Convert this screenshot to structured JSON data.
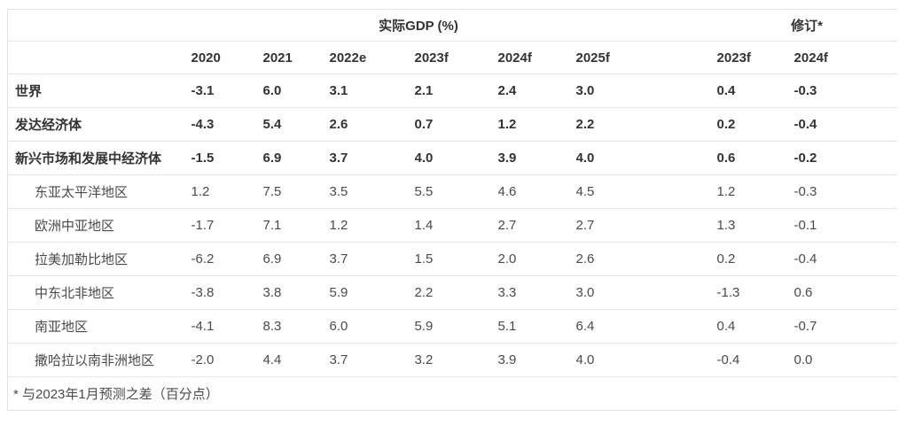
{
  "colors": {
    "background": "#ffffff",
    "border": "#e3e3e3",
    "text_strong": "#333333",
    "text_normal": "#4a4a4a"
  },
  "chart_data": {
    "type": "table",
    "title": "实际GDP (%)",
    "group_headers": {
      "gdp": "实际GDP (%)",
      "revision": "修订*"
    },
    "gdp_columns": [
      "2020",
      "2021",
      "2022e",
      "2023f",
      "2024f",
      "2025f"
    ],
    "revision_columns": [
      "2023f",
      "2024f"
    ],
    "rows": [
      {
        "label": "世界",
        "emphasis": true,
        "indent": false,
        "gdp": [
          "-3.1",
          "6.0",
          "3.1",
          "2.1",
          "2.4",
          "3.0"
        ],
        "revision": [
          "0.4",
          "-0.3"
        ]
      },
      {
        "label": "发达经济体",
        "emphasis": true,
        "indent": false,
        "gdp": [
          "-4.3",
          "5.4",
          "2.6",
          "0.7",
          "1.2",
          "2.2"
        ],
        "revision": [
          "0.2",
          "-0.4"
        ]
      },
      {
        "label": "新兴市场和发展中经济体",
        "emphasis": true,
        "indent": false,
        "gdp": [
          "-1.5",
          "6.9",
          "3.7",
          "4.0",
          "3.9",
          "4.0"
        ],
        "revision": [
          "0.6",
          "-0.2"
        ]
      },
      {
        "label": "东亚太平洋地区",
        "emphasis": false,
        "indent": true,
        "gdp": [
          "1.2",
          "7.5",
          "3.5",
          "5.5",
          "4.6",
          "4.5"
        ],
        "revision": [
          "1.2",
          "-0.3"
        ]
      },
      {
        "label": "欧洲中亚地区",
        "emphasis": false,
        "indent": true,
        "gdp": [
          "-1.7",
          "7.1",
          "1.2",
          "1.4",
          "2.7",
          "2.7"
        ],
        "revision": [
          "1.3",
          "-0.1"
        ]
      },
      {
        "label": "拉美加勒比地区",
        "emphasis": false,
        "indent": true,
        "gdp": [
          "-6.2",
          "6.9",
          "3.7",
          "1.5",
          "2.0",
          "2.6"
        ],
        "revision": [
          "0.2",
          "-0.4"
        ]
      },
      {
        "label": "中东北非地区",
        "emphasis": false,
        "indent": true,
        "gdp": [
          "-3.8",
          "3.8",
          "5.9",
          "2.2",
          "3.3",
          "3.0"
        ],
        "revision": [
          "-1.3",
          "0.6"
        ]
      },
      {
        "label": "南亚地区",
        "emphasis": false,
        "indent": true,
        "gdp": [
          "-4.1",
          "8.3",
          "6.0",
          "5.9",
          "5.1",
          "6.4"
        ],
        "revision": [
          "0.4",
          "-0.7"
        ]
      },
      {
        "label": "撒哈拉以南非洲地区",
        "emphasis": false,
        "indent": true,
        "gdp": [
          "-2.0",
          "4.4",
          "3.7",
          "3.2",
          "3.9",
          "4.0"
        ],
        "revision": [
          "-0.4",
          "0.0"
        ]
      }
    ],
    "footnote": "* 与2023年1月预测之差（百分点）"
  }
}
